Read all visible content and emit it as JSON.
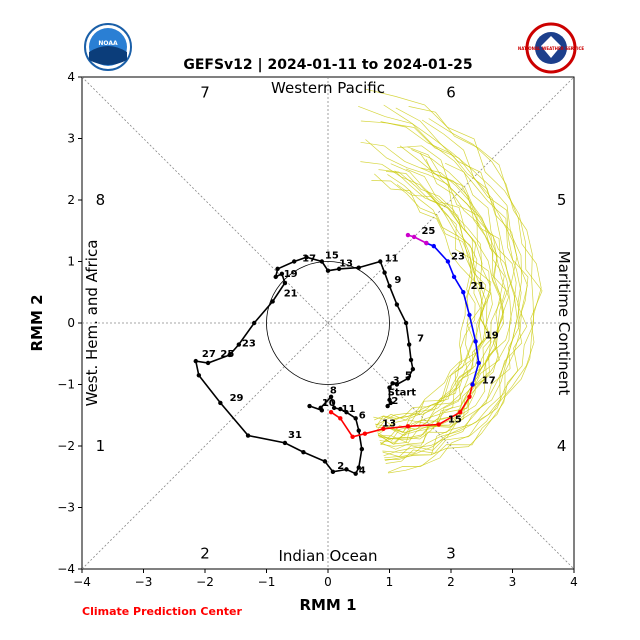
{
  "header": {
    "title": "GEFSv12 | 2024-01-11 to 2024-01-25",
    "noaa_logo_text": "NOAA",
    "nws_logo_text": "NATIONAL WEATHER SERVICE"
  },
  "footer": {
    "credit": "Climate Prediction Center"
  },
  "chart_data": {
    "type": "line",
    "title": "GEFSv12 | 2024-01-11 to 2024-01-25",
    "xlabel": "RMM 1",
    "ylabel": "RMM 2",
    "xlim": [
      -4,
      4
    ],
    "ylim": [
      -4,
      4
    ],
    "xticks": [
      "−4",
      "−3",
      "−2",
      "−1",
      "0",
      "1",
      "2",
      "3",
      "4"
    ],
    "yticks": [
      "−4",
      "−3",
      "−2",
      "−1",
      "0",
      "1",
      "2",
      "3",
      "4"
    ],
    "regions": {
      "top": "Western Pacific",
      "bottom": "Indian Ocean",
      "left": "West. Hem. and Africa",
      "right": "Maritime Continent"
    },
    "phase_labels": [
      {
        "text": "1",
        "x": -3.7,
        "y": -2.0
      },
      {
        "text": "2",
        "x": -2.0,
        "y": -3.75
      },
      {
        "text": "3",
        "x": 2.0,
        "y": -3.75
      },
      {
        "text": "4",
        "x": 3.8,
        "y": -2.0
      },
      {
        "text": "5",
        "x": 3.8,
        "y": 2.0
      },
      {
        "text": "6",
        "x": 2.0,
        "y": 3.75
      },
      {
        "text": "7",
        "x": -2.0,
        "y": 3.75
      },
      {
        "text": "8",
        "x": -3.7,
        "y": 2.0
      }
    ],
    "unit_circle_radius": 1,
    "start_label": "Start",
    "series": [
      {
        "color": "#000000",
        "points": [
          {
            "x": -0.3,
            "y": -1.35
          },
          {
            "x": -0.1,
            "y": -1.42
          },
          {
            "x": -0.12,
            "y": -1.38
          },
          {
            "x": 0.05,
            "y": -1.2
          },
          {
            "x": 0.1,
            "y": -1.38
          },
          {
            "x": 0.2,
            "y": -1.4
          },
          {
            "x": 0.3,
            "y": -1.45
          },
          {
            "x": 0.45,
            "y": -1.55
          },
          {
            "x": 0.5,
            "y": -1.75
          },
          {
            "x": 0.55,
            "y": -2.05
          },
          {
            "x": 0.5,
            "y": -2.35
          },
          {
            "x": 0.45,
            "y": -2.45
          },
          {
            "x": 0.3,
            "y": -2.38
          },
          {
            "x": 0.08,
            "y": -2.42
          },
          {
            "x": -0.05,
            "y": -2.25
          },
          {
            "x": -0.4,
            "y": -2.1
          },
          {
            "x": -0.7,
            "y": -1.95
          },
          {
            "x": -1.3,
            "y": -1.83
          },
          {
            "x": -1.75,
            "y": -1.3
          },
          {
            "x": -2.1,
            "y": -0.85
          },
          {
            "x": -2.15,
            "y": -0.62
          },
          {
            "x": -1.95,
            "y": -0.65
          },
          {
            "x": -1.6,
            "y": -0.52
          },
          {
            "x": -1.45,
            "y": -0.35
          },
          {
            "x": -1.2,
            "y": 0.0
          },
          {
            "x": -0.9,
            "y": 0.35
          },
          {
            "x": -0.7,
            "y": 0.65
          },
          {
            "x": -0.75,
            "y": 0.8
          },
          {
            "x": -0.85,
            "y": 0.75
          },
          {
            "x": -0.82,
            "y": 0.88
          },
          {
            "x": -0.55,
            "y": 1.0
          },
          {
            "x": -0.35,
            "y": 1.07
          },
          {
            "x": -0.1,
            "y": 1.0
          },
          {
            "x": 0.0,
            "y": 0.85
          },
          {
            "x": 0.18,
            "y": 0.88
          },
          {
            "x": 0.5,
            "y": 0.9
          },
          {
            "x": 0.85,
            "y": 1.0
          },
          {
            "x": 0.92,
            "y": 0.82
          },
          {
            "x": 1.0,
            "y": 0.6
          },
          {
            "x": 1.12,
            "y": 0.3
          },
          {
            "x": 1.27,
            "y": 0.0
          },
          {
            "x": 1.32,
            "y": -0.35
          },
          {
            "x": 1.35,
            "y": -0.6
          },
          {
            "x": 1.38,
            "y": -0.75
          },
          {
            "x": 1.3,
            "y": -0.9
          },
          {
            "x": 1.12,
            "y": -1.0
          },
          {
            "x": 1.05,
            "y": -0.98
          },
          {
            "x": 1.0,
            "y": -1.05
          },
          {
            "x": 1.0,
            "y": -1.25
          },
          {
            "x": 1.02,
            "y": -1.3
          },
          {
            "x": 0.97,
            "y": -1.35
          }
        ]
      },
      {
        "color": "#ff0000",
        "points": [
          {
            "x": 0.05,
            "y": -1.45
          },
          {
            "x": 0.2,
            "y": -1.55
          },
          {
            "x": 0.4,
            "y": -1.85
          },
          {
            "x": 0.6,
            "y": -1.8
          },
          {
            "x": 0.9,
            "y": -1.72
          },
          {
            "x": 1.3,
            "y": -1.68
          },
          {
            "x": 1.8,
            "y": -1.65
          },
          {
            "x": 2.15,
            "y": -1.45
          },
          {
            "x": 2.3,
            "y": -1.2
          },
          {
            "x": 2.35,
            "y": -1.0
          }
        ]
      },
      {
        "color": "#0000ff",
        "points": [
          {
            "x": 2.35,
            "y": -1.0
          },
          {
            "x": 2.45,
            "y": -0.65
          },
          {
            "x": 2.4,
            "y": -0.3
          },
          {
            "x": 2.3,
            "y": 0.13
          },
          {
            "x": 2.2,
            "y": 0.5
          },
          {
            "x": 2.05,
            "y": 0.75
          },
          {
            "x": 1.95,
            "y": 1.0
          },
          {
            "x": 1.72,
            "y": 1.25
          },
          {
            "x": 1.6,
            "y": 1.3
          }
        ]
      },
      {
        "color": "#cc00cc",
        "points": [
          {
            "x": 1.6,
            "y": 1.3
          },
          {
            "x": 1.4,
            "y": 1.4
          },
          {
            "x": 1.3,
            "y": 1.43
          }
        ]
      }
    ],
    "point_labels": [
      {
        "text": "2",
        "x": 1.03,
        "y": -1.32
      },
      {
        "text": "3",
        "x": 1.05,
        "y": -0.98
      },
      {
        "text": "4",
        "x": 0.5,
        "y": -2.45
      },
      {
        "text": "5",
        "x": 1.25,
        "y": -0.9
      },
      {
        "text": "6",
        "x": 0.5,
        "y": -1.55
      },
      {
        "text": "7",
        "x": 1.45,
        "y": -0.3
      },
      {
        "text": "8",
        "x": 0.03,
        "y": -1.15
      },
      {
        "text": "9",
        "x": 1.08,
        "y": 0.65
      },
      {
        "text": "10",
        "x": -0.1,
        "y": -1.35
      },
      {
        "text": "11",
        "x": 0.22,
        "y": -1.45
      },
      {
        "text": "11",
        "x": 0.92,
        "y": 1.0
      },
      {
        "text": "13",
        "x": 0.88,
        "y": -1.68
      },
      {
        "text": "13",
        "x": 0.18,
        "y": 0.92
      },
      {
        "text": "15",
        "x": 1.95,
        "y": -1.62
      },
      {
        "text": "15",
        "x": -0.05,
        "y": 1.05
      },
      {
        "text": "17",
        "x": 2.5,
        "y": -0.98
      },
      {
        "text": "17",
        "x": -0.42,
        "y": 1.0
      },
      {
        "text": "19",
        "x": 2.55,
        "y": -0.25
      },
      {
        "text": "19",
        "x": -0.72,
        "y": 0.75
      },
      {
        "text": "21",
        "x": 2.32,
        "y": 0.55
      },
      {
        "text": "21",
        "x": -0.72,
        "y": 0.43
      },
      {
        "text": "23",
        "x": 2.0,
        "y": 1.03
      },
      {
        "text": "23",
        "x": -1.4,
        "y": -0.38
      },
      {
        "text": "25",
        "x": 1.52,
        "y": 1.45
      },
      {
        "text": "25",
        "x": -1.75,
        "y": -0.55
      },
      {
        "text": "27",
        "x": -2.05,
        "y": -0.55
      },
      {
        "text": "29",
        "x": -1.6,
        "y": -1.27
      },
      {
        "text": "31",
        "x": -0.65,
        "y": -1.87
      },
      {
        "text": "2",
        "x": 0.15,
        "y": -2.37
      }
    ],
    "ensemble_color": "#c8c800"
  }
}
